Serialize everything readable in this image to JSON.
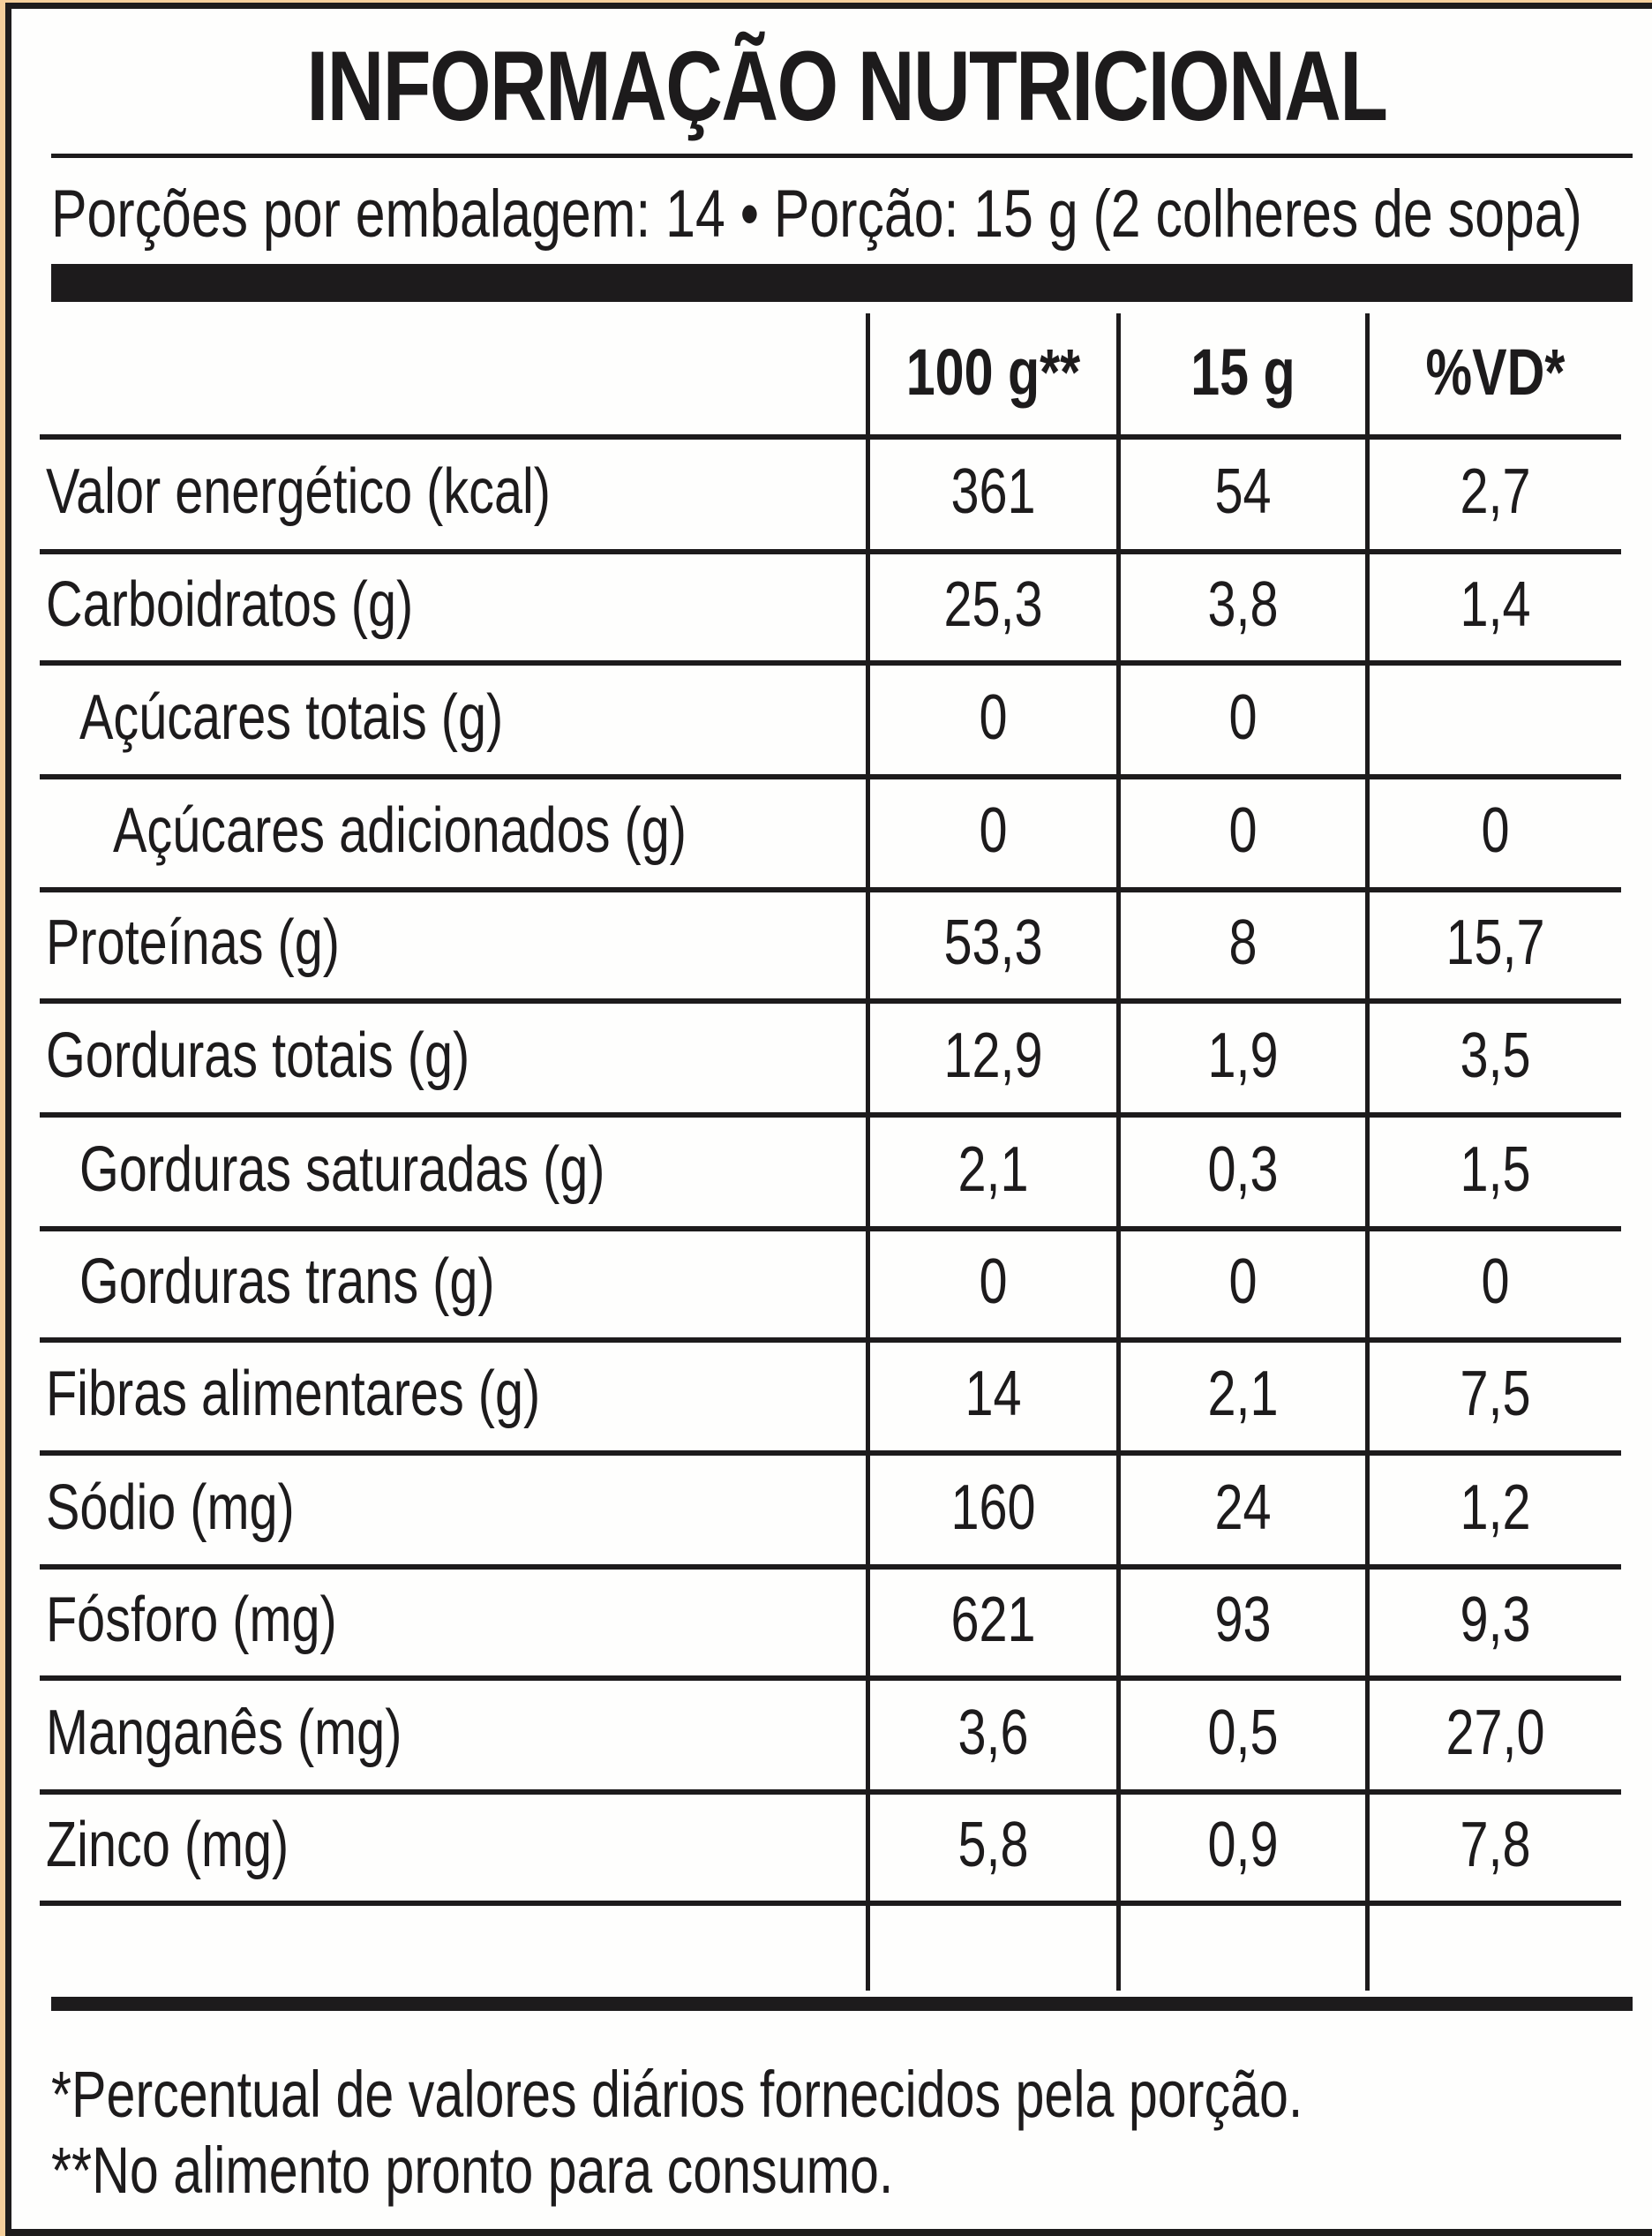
{
  "title": "INFORMAÇÃO NUTRICIONAL",
  "serving_line": "Porções por embalagem: 14 • Porção: 15 g (2 colheres de sopa)",
  "columns": [
    "100 g**",
    "15 g",
    "%VD*"
  ],
  "rows": [
    {
      "label": "Valor energético (kcal)",
      "indent": 0,
      "per100": "361",
      "per_portion": "54",
      "vd": "2,7"
    },
    {
      "label": "Carboidratos (g)",
      "indent": 0,
      "per100": "25,3",
      "per_portion": "3,8",
      "vd": "1,4"
    },
    {
      "label": "Açúcares totais (g)",
      "indent": 1,
      "per100": "0",
      "per_portion": "0",
      "vd": ""
    },
    {
      "label": "Açúcares adicionados (g)",
      "indent": 2,
      "per100": "0",
      "per_portion": "0",
      "vd": "0"
    },
    {
      "label": "Proteínas (g)",
      "indent": 0,
      "per100": "53,3",
      "per_portion": "8",
      "vd": "15,7"
    },
    {
      "label": "Gorduras totais (g)",
      "indent": 0,
      "per100": "12,9",
      "per_portion": "1,9",
      "vd": "3,5"
    },
    {
      "label": "Gorduras saturadas (g)",
      "indent": 1,
      "per100": "2,1",
      "per_portion": "0,3",
      "vd": "1,5"
    },
    {
      "label": "Gorduras trans (g)",
      "indent": 1,
      "per100": "0",
      "per_portion": "0",
      "vd": "0"
    },
    {
      "label": "Fibras alimentares (g)",
      "indent": 0,
      "per100": "14",
      "per_portion": "2,1",
      "vd": "7,5"
    },
    {
      "label": "Sódio (mg)",
      "indent": 0,
      "per100": "160",
      "per_portion": "24",
      "vd": "1,2"
    },
    {
      "label": "Fósforo (mg)",
      "indent": 0,
      "per100": "621",
      "per_portion": "93",
      "vd": "9,3"
    },
    {
      "label": "Manganês (mg)",
      "indent": 0,
      "per100": "3,6",
      "per_portion": "0,5",
      "vd": "27,0"
    },
    {
      "label": "Zinco (mg)",
      "indent": 0,
      "per100": "5,8",
      "per_portion": "0,9",
      "vd": "7,8"
    }
  ],
  "footnotes": [
    "*Percentual de valores diários fornecidos pela porção.",
    "**No alimento pronto para consumo."
  ],
  "colors": {
    "frame": "#f5cf9c",
    "ink": "#1d1b1c",
    "paper": "#fefefd"
  }
}
